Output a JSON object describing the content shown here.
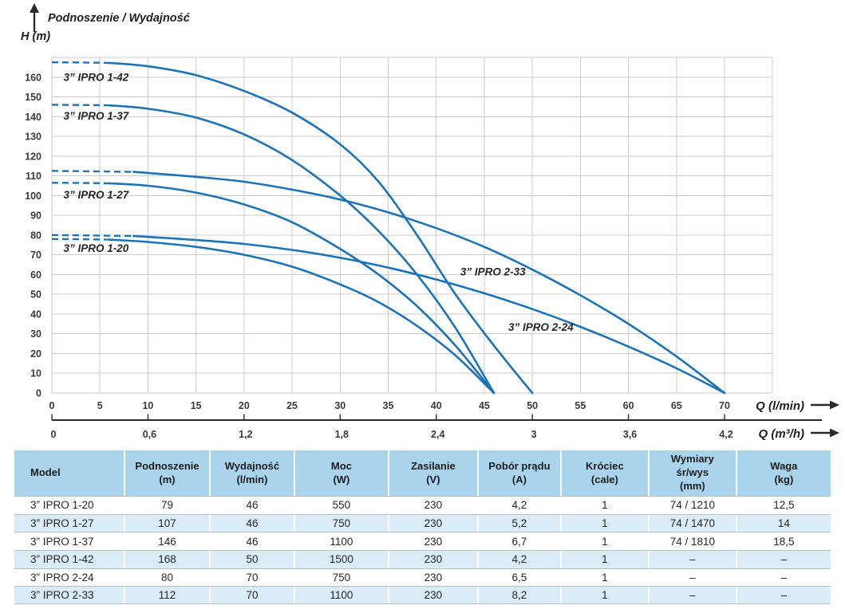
{
  "colors": {
    "curve_blue": "#1b74b8",
    "grid_gray": "#cbcbcb",
    "axis_dark": "#2b2b2b",
    "header_bg": "#a9d4ec",
    "alt_row_bg": "#daecf7",
    "row_bg": "#ffffff",
    "separator": "#b7bcc0",
    "text_dark": "#262626"
  },
  "chart_data": {
    "type": "line",
    "title": "Podnoszenie / Wydajność",
    "ylabel": "H (m)",
    "xlabel_primary": "Q (l/min)",
    "xlabel_secondary": "Q (m³/h)",
    "xlim": [
      0,
      75
    ],
    "ylim": [
      0,
      170
    ],
    "grid": true,
    "legend_position": "inline-labels",
    "curve_color": "#1b74b8",
    "grid_color": "#cbcbcb",
    "x_ticks_lmin": [
      0,
      5,
      10,
      15,
      20,
      25,
      30,
      35,
      40,
      45,
      50,
      55,
      60,
      65,
      70
    ],
    "y_ticks": [
      0,
      10,
      20,
      30,
      40,
      50,
      60,
      70,
      80,
      90,
      100,
      110,
      120,
      130,
      140,
      150,
      160
    ],
    "x_ticks_m3h": [
      {
        "label": "0",
        "q": 0
      },
      {
        "label": "0,6",
        "q": 10
      },
      {
        "label": "1,2",
        "q": 20
      },
      {
        "label": "1,8",
        "q": 30
      },
      {
        "label": "2,4",
        "q": 40
      },
      {
        "label": "3",
        "q": 50
      },
      {
        "label": "3,6",
        "q": 60
      },
      {
        "label": "4,2",
        "q": 70
      }
    ],
    "series": [
      {
        "name": "3” IPRO 1-42",
        "head_at_zero_m": 168,
        "max_flow_lmin": 50,
        "dashed": [
          [
            0,
            167.5
          ],
          [
            3,
            167.4
          ],
          [
            6,
            167.2
          ]
        ],
        "points": [
          [
            6,
            167.2
          ],
          [
            10,
            165.5
          ],
          [
            15,
            161
          ],
          [
            20,
            153
          ],
          [
            25,
            142
          ],
          [
            30,
            126
          ],
          [
            34,
            107
          ],
          [
            38,
            80
          ],
          [
            42,
            50
          ],
          [
            46,
            24
          ],
          [
            50,
            0
          ]
        ],
        "label": {
          "text": "3” IPRO 1-42",
          "x": 1.2,
          "y": 158
        }
      },
      {
        "name": "3” IPRO 1-37",
        "head_at_zero_m": 146,
        "max_flow_lmin": 46,
        "dashed": [
          [
            0,
            146
          ],
          [
            3,
            145.9
          ],
          [
            6,
            145.7
          ]
        ],
        "points": [
          [
            6,
            145.7
          ],
          [
            10,
            144
          ],
          [
            15,
            139.5
          ],
          [
            20,
            131
          ],
          [
            25,
            118
          ],
          [
            30,
            100
          ],
          [
            34,
            82
          ],
          [
            38,
            60
          ],
          [
            42,
            33
          ],
          [
            46,
            0
          ]
        ],
        "label": {
          "text": "3” IPRO 1-37",
          "x": 1.2,
          "y": 138.5
        }
      },
      {
        "name": "3” IPRO 1-27",
        "head_at_zero_m": 107,
        "max_flow_lmin": 46,
        "dashed": [
          [
            0,
            106.5
          ],
          [
            3,
            106.4
          ],
          [
            6,
            106.2
          ]
        ],
        "points": [
          [
            6,
            106.2
          ],
          [
            10,
            105
          ],
          [
            15,
            101.5
          ],
          [
            20,
            95.5
          ],
          [
            25,
            86.5
          ],
          [
            30,
            73
          ],
          [
            34,
            60
          ],
          [
            38,
            44
          ],
          [
            42,
            24
          ],
          [
            46,
            0
          ]
        ],
        "label": {
          "text": "3” IPRO 1-27",
          "x": 1.2,
          "y": 98.5
        }
      },
      {
        "name": "3” IPRO 1-20",
        "head_at_zero_m": 79,
        "max_flow_lmin": 46,
        "dashed": [
          [
            0,
            78
          ],
          [
            3,
            77.9
          ],
          [
            6,
            77.7
          ]
        ],
        "points": [
          [
            6,
            77.7
          ],
          [
            10,
            76.5
          ],
          [
            15,
            74
          ],
          [
            20,
            70
          ],
          [
            25,
            64
          ],
          [
            30,
            55
          ],
          [
            34,
            46
          ],
          [
            38,
            34
          ],
          [
            42,
            19
          ],
          [
            46,
            0
          ]
        ],
        "label": {
          "text": "3” IPRO 1-20",
          "x": 1.2,
          "y": 71.5
        }
      },
      {
        "name": "3” IPRO 2-33",
        "head_at_zero_m": 112,
        "max_flow_lmin": 70,
        "dashed": [
          [
            0,
            112.5
          ],
          [
            4,
            112.3
          ],
          [
            8.5,
            112
          ]
        ],
        "points": [
          [
            8.5,
            112
          ],
          [
            15,
            109.5
          ],
          [
            20,
            107
          ],
          [
            25,
            103
          ],
          [
            30,
            98
          ],
          [
            35,
            91.5
          ],
          [
            40,
            83.5
          ],
          [
            45,
            74
          ],
          [
            50,
            62.5
          ],
          [
            55,
            49.5
          ],
          [
            60,
            35
          ],
          [
            65,
            18.5
          ],
          [
            70,
            0
          ]
        ],
        "label": {
          "text": "3” IPRO 2-33",
          "x": 42.5,
          "y": 59.5
        }
      },
      {
        "name": "3” IPRO 2-24",
        "head_at_zero_m": 80,
        "max_flow_lmin": 70,
        "dashed": [
          [
            0,
            80
          ],
          [
            4,
            79.8
          ],
          [
            8.5,
            79.5
          ]
        ],
        "points": [
          [
            8.5,
            79.5
          ],
          [
            15,
            77.5
          ],
          [
            20,
            75.5
          ],
          [
            25,
            72.5
          ],
          [
            30,
            68.5
          ],
          [
            35,
            63.5
          ],
          [
            40,
            57.5
          ],
          [
            45,
            50.5
          ],
          [
            50,
            42.5
          ],
          [
            55,
            33.5
          ],
          [
            60,
            23.5
          ],
          [
            65,
            12.5
          ],
          [
            70,
            0
          ]
        ],
        "label": {
          "text": "3” IPRO 2-24",
          "x": 47.5,
          "y": 31.5
        }
      }
    ]
  },
  "table": {
    "columns": [
      {
        "lines": [
          "Model"
        ]
      },
      {
        "lines": [
          "Podnoszenie",
          "(m)"
        ]
      },
      {
        "lines": [
          "Wydajność",
          "(l/min)"
        ]
      },
      {
        "lines": [
          "Moc",
          "(W)"
        ]
      },
      {
        "lines": [
          "Zasilanie",
          "(V)"
        ]
      },
      {
        "lines": [
          "Pobór prądu",
          "(A)"
        ]
      },
      {
        "lines": [
          "Króciec",
          "(cale)"
        ]
      },
      {
        "lines": [
          "Wymiary",
          "śr/wys",
          "(mm)"
        ]
      },
      {
        "lines": [
          "Waga",
          "(kg)"
        ]
      }
    ],
    "rows": [
      [
        "3” IPRO 1-20",
        "79",
        "46",
        "550",
        "230",
        "4,2",
        "1",
        "74 / 1210",
        "12,5"
      ],
      [
        "3” IPRO 1-27",
        "107",
        "46",
        "750",
        "230",
        "5,2",
        "1",
        "74 / 1470",
        "14"
      ],
      [
        "3” IPRO 1-37",
        "146",
        "46",
        "1100",
        "230",
        "6,7",
        "1",
        "74 / 1810",
        "18,5"
      ],
      [
        "3” IPRO 1-42",
        "168",
        "50",
        "1500",
        "230",
        "4,2",
        "1",
        "–",
        "–"
      ],
      [
        "3” IPRO 2-24",
        "80",
        "70",
        "750",
        "230",
        "6,5",
        "1",
        "–",
        "–"
      ],
      [
        "3” IPRO 2-33",
        "112",
        "70",
        "1100",
        "230",
        "8,2",
        "1",
        "–",
        "–"
      ]
    ]
  }
}
